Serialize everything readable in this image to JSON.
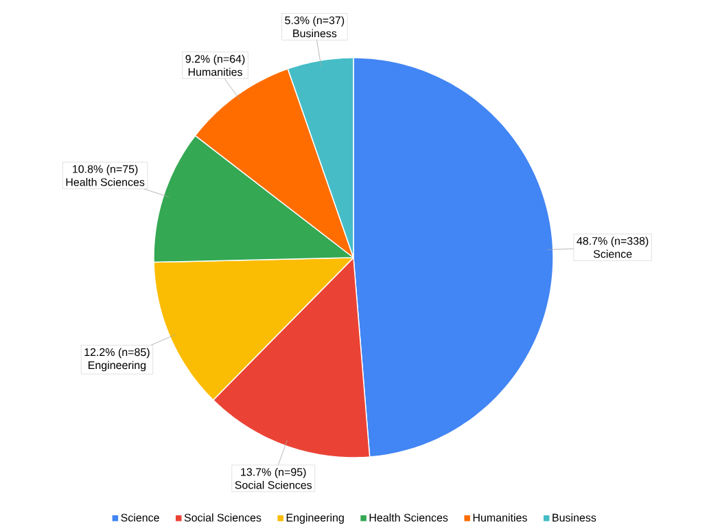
{
  "chart_data": {
    "type": "pie",
    "categories": [
      "Science",
      "Social Sciences",
      "Engineering",
      "Health Sciences",
      "Humanities",
      "Business"
    ],
    "values": [
      338,
      95,
      85,
      75,
      64,
      37
    ],
    "colors": [
      "#4285f4",
      "#ea4335",
      "#fbbc04",
      "#34a853",
      "#ff6d01",
      "#46bdc6"
    ],
    "value_labels": [
      "48.7% (n=338)",
      "13.7% (n=95)",
      "12.2% (n=85)",
      "10.8% (n=75)",
      "9.2% (n=64)",
      "5.3% (n=37)"
    ],
    "legend": "bottom"
  }
}
